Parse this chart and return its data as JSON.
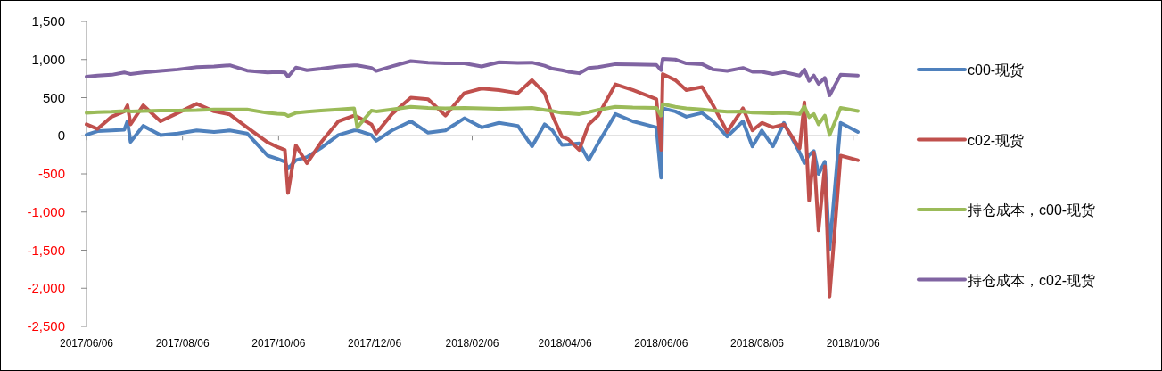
{
  "chart_data": {
    "type": "line",
    "x": [
      "2017-06-06",
      "2017-06-13",
      "2017-06-22",
      "2017-06-30",
      "2017-07-02",
      "2017-07-04",
      "2017-07-12",
      "2017-07-23",
      "2017-08-03",
      "2017-08-15",
      "2017-08-26",
      "2017-09-05",
      "2017-09-16",
      "2017-09-29",
      "2017-10-05",
      "2017-10-10",
      "2017-10-12",
      "2017-10-17",
      "2017-10-24",
      "2017-11-02",
      "2017-11-13",
      "2017-11-23",
      "2017-11-25",
      "2017-12-04",
      "2017-12-07",
      "2017-12-17",
      "2017-12-29",
      "2018-01-09",
      "2018-01-20",
      "2018-02-01",
      "2018-02-12",
      "2018-02-23",
      "2018-03-07",
      "2018-03-16",
      "2018-03-24",
      "2018-03-29",
      "2018-04-04",
      "2018-04-08",
      "2018-04-15",
      "2018-04-21",
      "2018-04-27",
      "2018-05-08",
      "2018-05-19",
      "2018-06-03",
      "2018-06-06",
      "2018-06-07",
      "2018-06-15",
      "2018-06-22",
      "2018-07-02",
      "2018-07-09",
      "2018-07-18",
      "2018-07-28",
      "2018-08-03",
      "2018-08-09",
      "2018-08-16",
      "2018-08-23",
      "2018-09-02",
      "2018-09-05",
      "2018-09-08",
      "2018-09-11",
      "2018-09-14",
      "2018-09-18",
      "2018-09-21",
      "2018-09-28",
      "2018-10-09"
    ],
    "series": [
      {
        "name": "c00-现货",
        "color": "#4f81bd",
        "values": [
          12,
          60,
          70,
          80,
          190,
          -80,
          130,
          10,
          30,
          70,
          50,
          70,
          30,
          -260,
          -300,
          -340,
          -430,
          -320,
          -280,
          -160,
          10,
          70,
          70,
          10,
          -65,
          70,
          190,
          40,
          70,
          230,
          110,
          170,
          130,
          -140,
          150,
          70,
          -120,
          -115,
          -100,
          -320,
          -100,
          285,
          190,
          110,
          -550,
          360,
          320,
          250,
          300,
          190,
          -10,
          190,
          -140,
          70,
          -140,
          170,
          -220,
          -360,
          -250,
          -200,
          -500,
          -340,
          -1490,
          170,
          50
        ]
      },
      {
        "name": "c02-现货",
        "color": "#c0504d",
        "values": [
          150,
          90,
          250,
          320,
          400,
          150,
          400,
          190,
          300,
          420,
          320,
          280,
          110,
          -85,
          -145,
          -185,
          -750,
          -125,
          -360,
          -85,
          190,
          265,
          250,
          150,
          30,
          285,
          500,
          480,
          265,
          560,
          620,
          600,
          560,
          730,
          560,
          265,
          -10,
          -45,
          -185,
          150,
          265,
          675,
          600,
          480,
          -185,
          810,
          730,
          600,
          640,
          400,
          50,
          360,
          70,
          170,
          110,
          150,
          -165,
          440,
          -850,
          -220,
          -1240,
          -400,
          -2110,
          -260,
          -320
        ]
      },
      {
        "name": "持仓成本，c00-现货",
        "color": "#9bbb59",
        "values": [
          300,
          310,
          315,
          325,
          330,
          320,
          325,
          330,
          330,
          335,
          345,
          345,
          345,
          300,
          290,
          285,
          260,
          300,
          315,
          330,
          345,
          360,
          110,
          330,
          320,
          345,
          380,
          365,
          360,
          365,
          360,
          355,
          360,
          365,
          340,
          325,
          300,
          295,
          285,
          310,
          340,
          380,
          370,
          365,
          265,
          415,
          380,
          360,
          345,
          330,
          315,
          320,
          305,
          300,
          295,
          300,
          285,
          385,
          245,
          285,
          150,
          265,
          10,
          365,
          325
        ]
      },
      {
        "name": "持仓成本，c02-现货",
        "color": "#8064a2",
        "values": [
          775,
          790,
          800,
          830,
          820,
          810,
          830,
          850,
          870,
          900,
          910,
          925,
          855,
          830,
          835,
          830,
          775,
          895,
          860,
          880,
          910,
          925,
          925,
          890,
          850,
          910,
          980,
          960,
          950,
          950,
          910,
          965,
          955,
          960,
          920,
          880,
          860,
          840,
          820,
          890,
          900,
          940,
          935,
          930,
          860,
          1010,
          1000,
          950,
          940,
          870,
          850,
          890,
          840,
          840,
          810,
          835,
          790,
          870,
          720,
          790,
          680,
          760,
          530,
          800,
          790
        ]
      }
    ],
    "xlim": [
      "2017-06-06",
      "2018-10-09"
    ],
    "xticks": [
      {
        "value": "2017-06-06",
        "label": "2017/06/06"
      },
      {
        "value": "2017-08-06",
        "label": "2017/08/06"
      },
      {
        "value": "2017-10-06",
        "label": "2017/10/06"
      },
      {
        "value": "2017-12-06",
        "label": "2017/12/06"
      },
      {
        "value": "2018-02-06",
        "label": "2018/02/06"
      },
      {
        "value": "2018-04-06",
        "label": "2018/04/06"
      },
      {
        "value": "2018-06-06",
        "label": "2018/06/06"
      },
      {
        "value": "2018-08-06",
        "label": "2018/08/06"
      },
      {
        "value": "2018-10-06",
        "label": "2018/10/06"
      }
    ],
    "ylim": [
      -2500,
      1500
    ],
    "yticks": [
      {
        "value": 1500,
        "label": "1,500"
      },
      {
        "value": 1000,
        "label": "1,000"
      },
      500,
      0,
      -500,
      {
        "value": -1000,
        "label": "-1,000"
      },
      {
        "value": -1500,
        "label": "-1,500"
      },
      {
        "value": -2000,
        "label": "-2,000"
      },
      {
        "value": -2500,
        "label": "-2,500"
      }
    ],
    "legend": "right"
  }
}
